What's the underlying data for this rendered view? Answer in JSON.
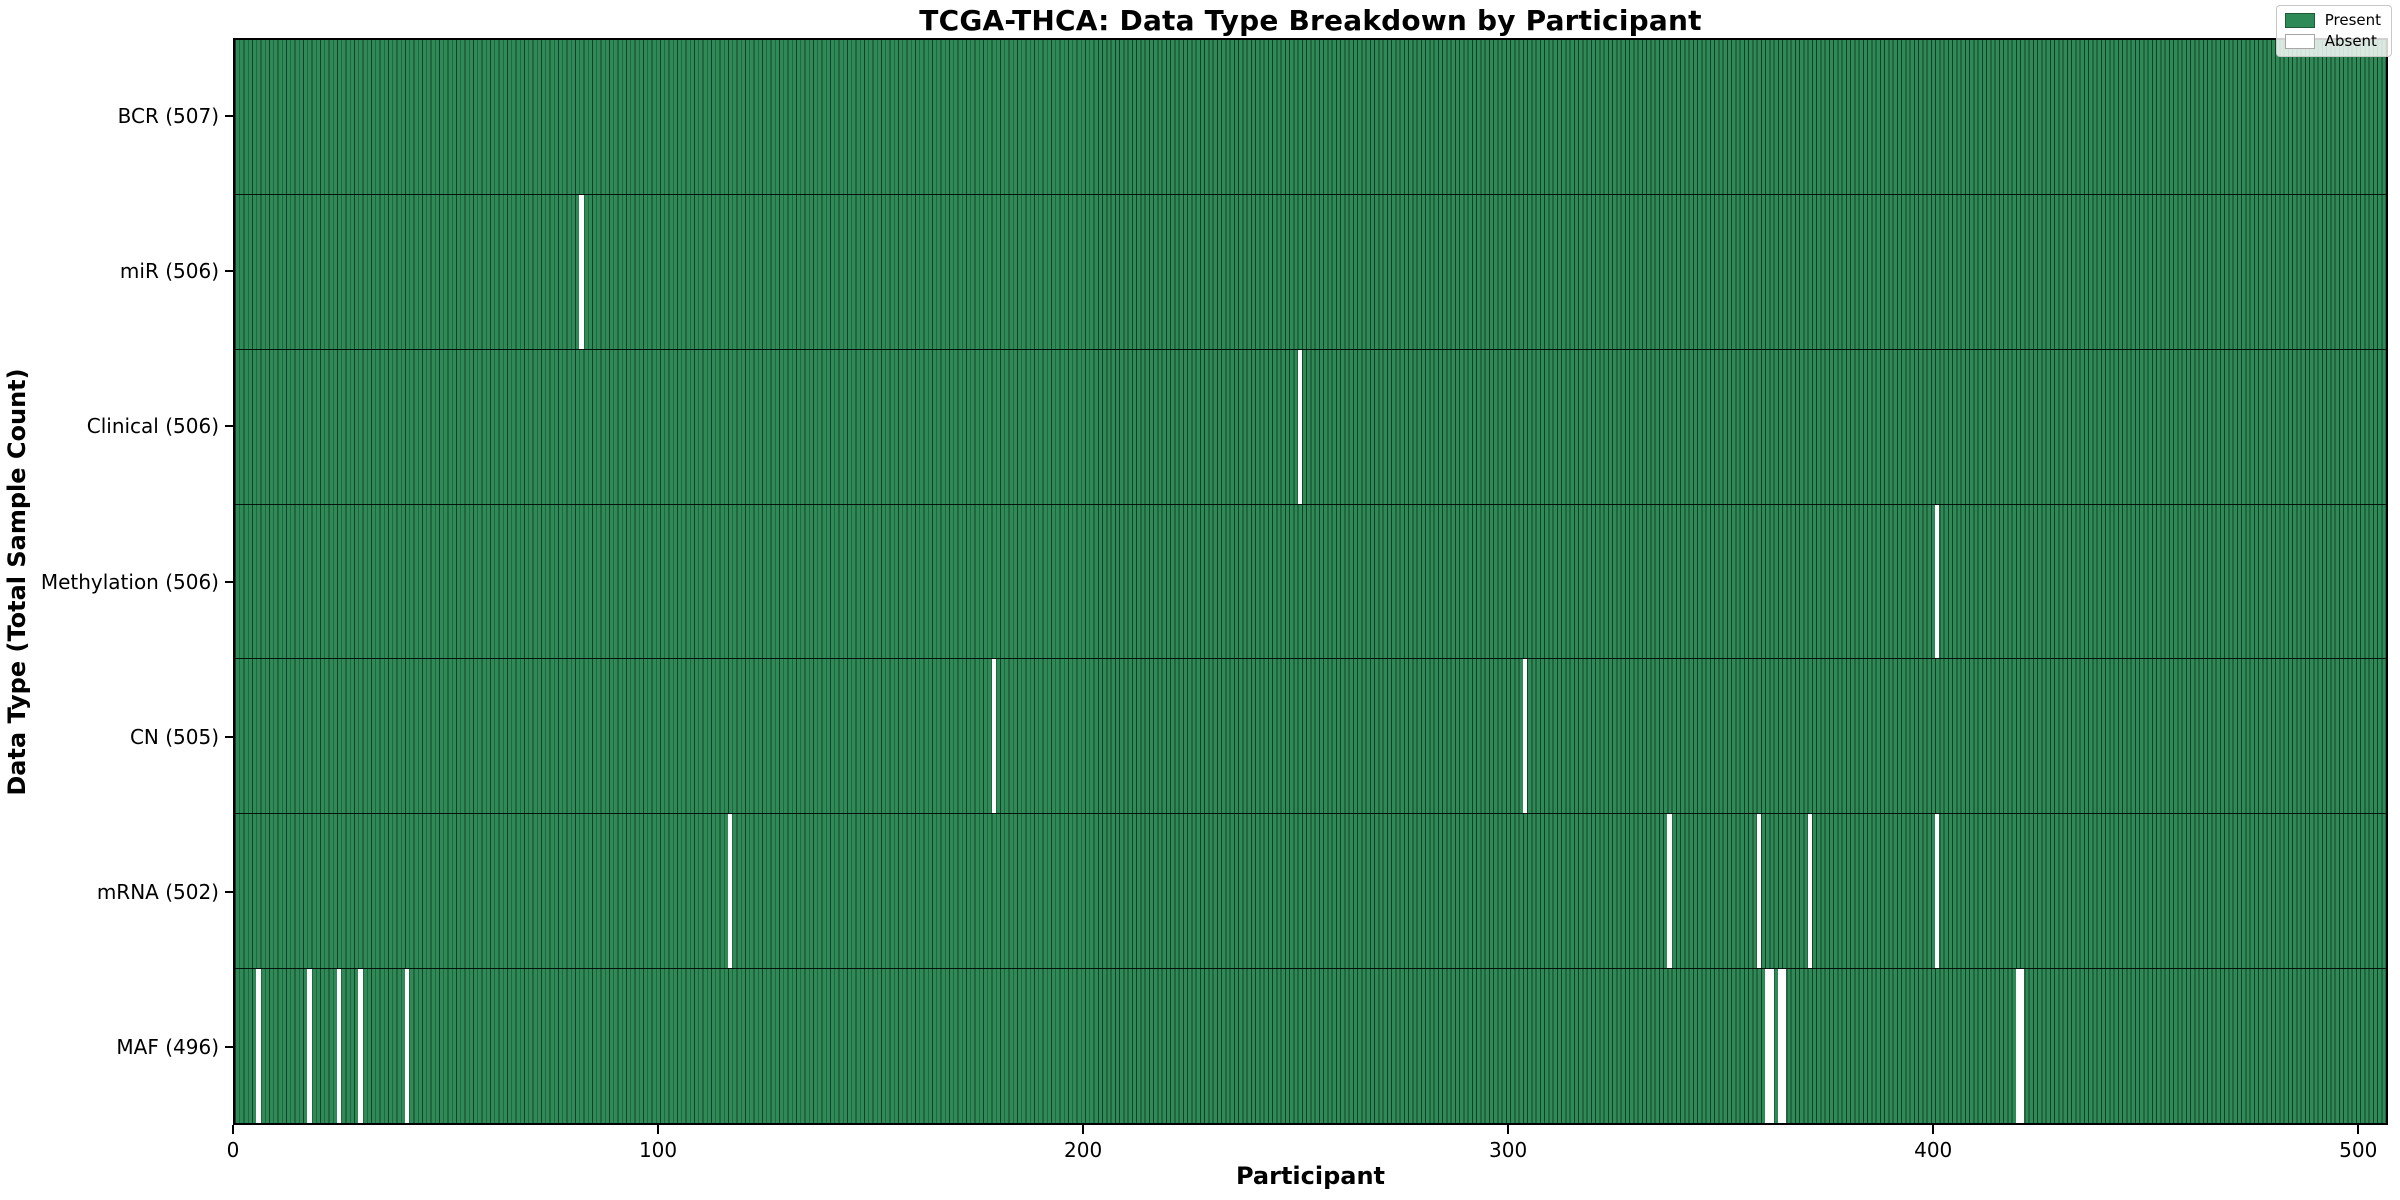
{
  "chart_data": {
    "type": "heatmap",
    "title": "TCGA-THCA: Data Type Breakdown by Participant",
    "xlabel": "Participant",
    "ylabel": "Data Type (Total Sample Count)",
    "x_ticks": [
      0,
      100,
      200,
      300,
      400,
      500
    ],
    "x_range": [
      0,
      507
    ],
    "total_participants": 507,
    "grid": false,
    "legend_position": "upper right",
    "legend": [
      {
        "label": "Present",
        "color": "#2e8b57"
      },
      {
        "label": "Absent",
        "color": "#ffffff"
      }
    ],
    "colors": {
      "present": "#2e8b57",
      "absent": "#ffffff",
      "bar_edge": "rgba(0,0,0,0.55)",
      "row_separator": "rgba(0,0,0,0.85)"
    },
    "rows": [
      {
        "label": "BCR (507)",
        "name": "BCR",
        "present_count": 507,
        "absent_participants": []
      },
      {
        "label": "miR (506)",
        "name": "miR",
        "present_count": 506,
        "absent_participants": [
          81
        ]
      },
      {
        "label": "Clinical (506)",
        "name": "Clinical",
        "present_count": 506,
        "absent_participants": [
          250
        ]
      },
      {
        "label": "Methylation (506)",
        "name": "Methylation",
        "present_count": 506,
        "absent_participants": [
          400
        ]
      },
      {
        "label": "CN (505)",
        "name": "CN",
        "present_count": 505,
        "absent_participants": [
          178,
          303
        ]
      },
      {
        "label": "mRNA (502)",
        "name": "mRNA",
        "present_count": 502,
        "absent_participants": [
          116,
          337,
          358,
          370,
          400
        ]
      },
      {
        "label": "MAF (496)",
        "name": "MAF",
        "present_count": 496,
        "absent_participants": [
          5,
          17,
          24,
          29,
          40,
          360,
          361,
          363,
          364,
          419,
          420
        ]
      }
    ]
  }
}
